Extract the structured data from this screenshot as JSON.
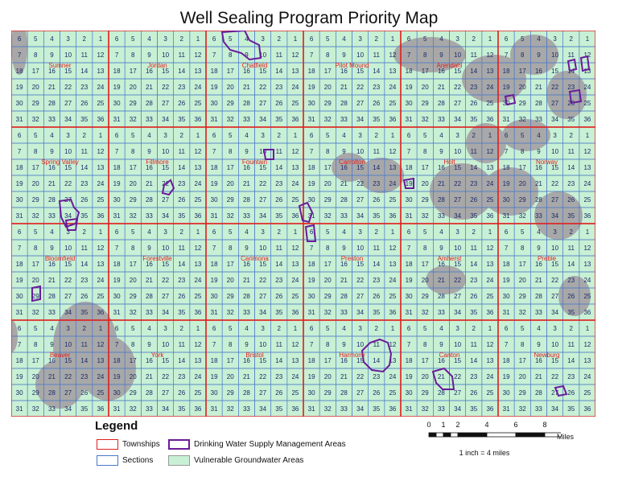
{
  "title": "Well Sealing Program Priority Map",
  "colors": {
    "vulnerable_fill": "#c8f0d4",
    "non_vulnerable": "#a8a8a8",
    "township_line": "#e02020",
    "section_line": "#4a78c8",
    "dwsma_outline": "#6a1b9a",
    "label_text": "#e02020"
  },
  "section_grid": [
    [
      6,
      5,
      4,
      3,
      2,
      1
    ],
    [
      7,
      8,
      9,
      10,
      11,
      12
    ],
    [
      18,
      17,
      16,
      15,
      14,
      13
    ],
    [
      19,
      20,
      21,
      22,
      23,
      24
    ],
    [
      30,
      29,
      28,
      27,
      26,
      25
    ],
    [
      31,
      32,
      33,
      34,
      35,
      36
    ]
  ],
  "townships": [
    [
      "Sumner",
      "Jordan",
      "Chatfield",
      "Pilot Mound",
      "Arendahl",
      ""
    ],
    [
      "Spring Valley",
      "Fillmore",
      "Fountain",
      "Carrolton",
      "Holt",
      "Norway"
    ],
    [
      "Bloomfield",
      "Forestville",
      "Carimona",
      "Preston",
      "Amherst",
      "Preble"
    ],
    [
      "Beaver",
      "York",
      "Bristol",
      "Harmony",
      "Canton",
      "Newburg"
    ]
  ],
  "legend": {
    "title": "Legend",
    "items": {
      "townships": "Townships",
      "sections": "Sections",
      "dwsma": "Drinking Water Supply Management Areas",
      "vulnerable": "Vulnerable Groundwater Areas"
    }
  },
  "scale": {
    "ticks": [
      "0",
      "1",
      "2",
      "4",
      "6",
      "8"
    ],
    "unit": "Miles",
    "ratio_text": "1 inch = 4 miles"
  }
}
